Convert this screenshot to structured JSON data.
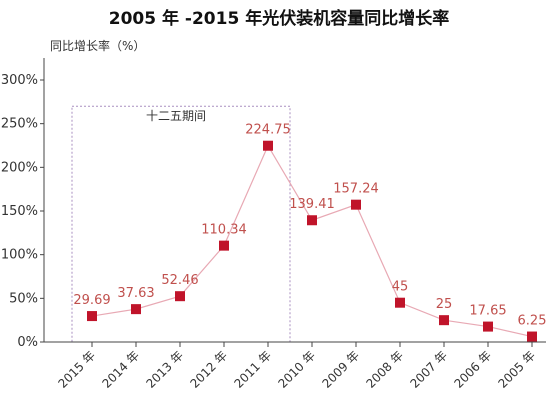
{
  "chart_data": {
    "type": "line",
    "title": "2005 年 -2015 年光伏装机容量同比增长率",
    "ylabel": "同比增长率（%）",
    "xlabel": "",
    "categories": [
      "2015 年",
      "2014 年",
      "2013 年",
      "2012 年",
      "2011 年",
      "2010 年",
      "2009 年",
      "2008 年",
      "2007 年",
      "2006 年",
      "2005 年"
    ],
    "values": [
      29.69,
      37.63,
      52.46,
      110.34,
      224.75,
      139.41,
      157.24,
      45,
      25,
      17.65,
      6.25
    ],
    "value_labels": [
      "29.69",
      "37.63",
      "52.46",
      "110.34",
      "224.75",
      "139.41",
      "157.24",
      "45",
      "25",
      "17.65",
      "6.25"
    ],
    "ylim": [
      0,
      300
    ],
    "yticks": [
      0,
      50,
      100,
      150,
      200,
      250,
      300
    ],
    "ytick_labels": [
      "0%",
      "50%",
      "100%",
      "150%",
      "200%",
      "250%",
      "300%"
    ],
    "grid": false,
    "legend": "none",
    "annotation": {
      "text": "十二五期间",
      "span_categories": [
        "2015 年",
        "2011 年"
      ],
      "y_top": 270
    },
    "colors": {
      "marker": "#c0142a",
      "line": "#e8a9b4",
      "label": "#c0504d",
      "axis": "#444444",
      "box": "#a98fc0"
    }
  }
}
